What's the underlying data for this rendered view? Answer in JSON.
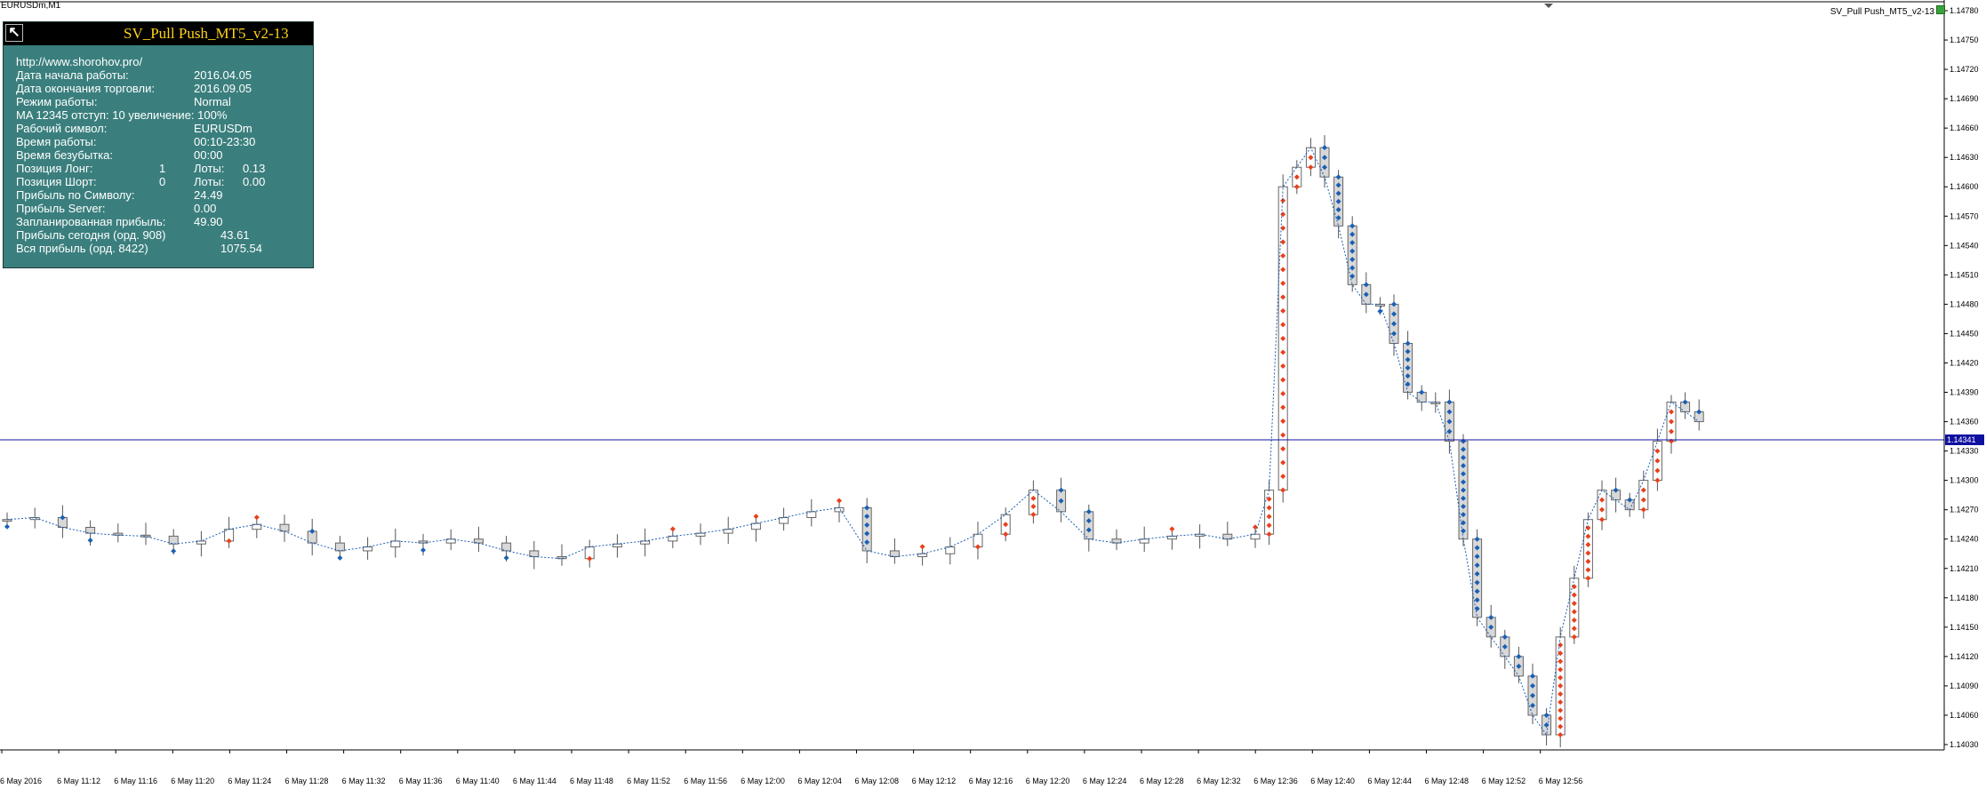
{
  "window": {
    "symbol_timeframe": "EURUSDm,M1",
    "indicator_name": "SV_Pull Push_MT5_v2-13"
  },
  "panel": {
    "title": "SV_Pull Push_MT5_v2-13",
    "url": "http://www.shorohov.pro/",
    "rows": [
      {
        "label": "Дата начала работы:",
        "value": "2016.04.05"
      },
      {
        "label": "Дата окончания торговли:",
        "value": "2016.09.05"
      },
      {
        "label": "Режим работы:",
        "value": "Normal"
      },
      {
        "label": "MA 12345 отступ: 10 увеличение: 100%",
        "value": ""
      },
      {
        "label": "Рабочий символ:",
        "value": "EURUSDm"
      },
      {
        "label": "Время работы:",
        "value": "00:10-23:30"
      },
      {
        "label": "Время безубытка:",
        "value": "00:00"
      }
    ],
    "long": {
      "label": "Позиция Лонг:",
      "count": "1",
      "lots_label": "Лоты:",
      "lots": "0.13"
    },
    "short": {
      "label": "Позиция Шорт:",
      "count": "0",
      "lots_label": "Лоты:",
      "lots": "0.00"
    },
    "rows2": [
      {
        "label": "Прибыль по Символу:",
        "value": "24.49"
      },
      {
        "label": "Прибыль Server:",
        "value": "0.00"
      },
      {
        "label": "Запланированная прибыль:",
        "value": "49.90"
      }
    ],
    "today": {
      "label": "Прибыль сегодня (орд. 908)",
      "value": "43.61"
    },
    "total": {
      "label": "Вся прибыль (орд. 8422)",
      "value": "1075.54"
    }
  },
  "chart_data": {
    "type": "candlestick",
    "symbol": "EURUSDm",
    "timeframe": "M1",
    "price_axis": [
      "1.14780",
      "1.14750",
      "1.14720",
      "1.14690",
      "1.14660",
      "1.14630",
      "1.14600",
      "1.14570",
      "1.14540",
      "1.14510",
      "1.14480",
      "1.14450",
      "1.14420",
      "1.14390",
      "1.14360",
      "1.14330",
      "1.14300",
      "1.14270",
      "1.14240",
      "1.14210",
      "1.14180",
      "1.14150",
      "1.14120",
      "1.14090",
      "1.14060",
      "1.14030"
    ],
    "ylim": [
      1.1401,
      1.1479
    ],
    "current_price": "1.14341",
    "current_price_color": "#1010a0",
    "time_axis": [
      "6 May 2016",
      "6 May 11:12",
      "6 May 11:16",
      "6 May 11:20",
      "6 May 11:24",
      "6 May 11:28",
      "6 May 11:32",
      "6 May 11:36",
      "6 May 11:40",
      "6 May 11:44",
      "6 May 11:48",
      "6 May 11:52",
      "6 May 11:56",
      "6 May 12:00",
      "6 May 12:04",
      "6 May 12:08",
      "6 May 12:12",
      "6 May 12:16",
      "6 May 12:20",
      "6 May 12:24",
      "6 May 12:28",
      "6 May 12:32",
      "6 May 12:36",
      "6 May 12:40",
      "6 May 12:44",
      "6 May 12:48",
      "6 May 12:52",
      "6 May 12:56"
    ],
    "colors": {
      "bull_body": "#ffffff",
      "bear_body": "#d8d8d8",
      "wick": "#555555",
      "red_marker": "#e8401c",
      "blue_marker": "#1a5fb4",
      "ma_line": "#1a5fb4"
    },
    "close_path": [
      [
        0,
        1.1426
      ],
      [
        20,
        1.14262
      ],
      [
        40,
        1.14252
      ],
      [
        60,
        1.14246
      ],
      [
        80,
        1.14244
      ],
      [
        100,
        1.14243
      ],
      [
        120,
        1.14235
      ],
      [
        140,
        1.14238
      ],
      [
        160,
        1.1425
      ],
      [
        180,
        1.14255
      ],
      [
        200,
        1.14248
      ],
      [
        220,
        1.14236
      ],
      [
        240,
        1.14228
      ],
      [
        260,
        1.14232
      ],
      [
        280,
        1.14238
      ],
      [
        300,
        1.14236
      ],
      [
        320,
        1.1424
      ],
      [
        340,
        1.14236
      ],
      [
        360,
        1.14228
      ],
      [
        380,
        1.14222
      ],
      [
        400,
        1.1422
      ],
      [
        420,
        1.14232
      ],
      [
        440,
        1.14235
      ],
      [
        460,
        1.14238
      ],
      [
        480,
        1.14243
      ],
      [
        500,
        1.14246
      ],
      [
        520,
        1.1425
      ],
      [
        540,
        1.14256
      ],
      [
        560,
        1.14262
      ],
      [
        580,
        1.14268
      ],
      [
        600,
        1.14272
      ],
      [
        620,
        1.14228
      ],
      [
        640,
        1.14222
      ],
      [
        660,
        1.14225
      ],
      [
        680,
        1.14232
      ],
      [
        700,
        1.14245
      ],
      [
        720,
        1.14265
      ],
      [
        740,
        1.1429
      ],
      [
        760,
        1.14268
      ],
      [
        780,
        1.1424
      ],
      [
        800,
        1.14236
      ],
      [
        820,
        1.1424
      ],
      [
        840,
        1.14243
      ],
      [
        860,
        1.14245
      ],
      [
        880,
        1.1424
      ],
      [
        900,
        1.14245
      ],
      [
        910,
        1.1429
      ],
      [
        920,
        1.146
      ],
      [
        930,
        1.1462
      ],
      [
        940,
        1.1464
      ],
      [
        950,
        1.1461
      ],
      [
        960,
        1.1456
      ],
      [
        970,
        1.145
      ],
      [
        980,
        1.1448
      ],
      [
        990,
        1.1448
      ],
      [
        1000,
        1.1444
      ],
      [
        1010,
        1.1439
      ],
      [
        1020,
        1.1438
      ],
      [
        1030,
        1.1438
      ],
      [
        1040,
        1.1434
      ],
      [
        1050,
        1.1424
      ],
      [
        1060,
        1.1416
      ],
      [
        1070,
        1.1414
      ],
      [
        1080,
        1.1412
      ],
      [
        1090,
        1.141
      ],
      [
        1100,
        1.1406
      ],
      [
        1110,
        1.1404
      ],
      [
        1120,
        1.1414
      ],
      [
        1130,
        1.142
      ],
      [
        1140,
        1.1426
      ],
      [
        1150,
        1.1429
      ],
      [
        1160,
        1.1428
      ],
      [
        1170,
        1.1427
      ],
      [
        1180,
        1.143
      ],
      [
        1190,
        1.1434
      ],
      [
        1200,
        1.1438
      ],
      [
        1210,
        1.1437
      ],
      [
        1220,
        1.1436
      ]
    ]
  }
}
